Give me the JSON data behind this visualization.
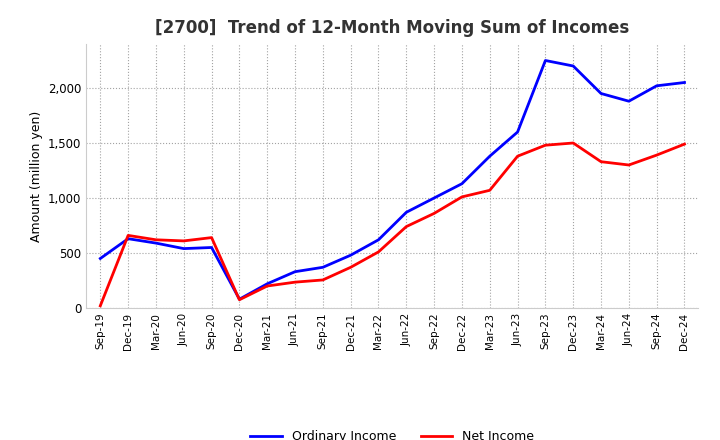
{
  "title": "[2700]  Trend of 12-Month Moving Sum of Incomes",
  "ylabel": "Amount (million yen)",
  "x_labels": [
    "Sep-19",
    "Dec-19",
    "Mar-20",
    "Jun-20",
    "Sep-20",
    "Dec-20",
    "Mar-21",
    "Jun-21",
    "Sep-21",
    "Dec-21",
    "Mar-22",
    "Jun-22",
    "Sep-22",
    "Dec-22",
    "Mar-23",
    "Jun-23",
    "Sep-23",
    "Dec-23",
    "Mar-24",
    "Jun-24",
    "Sep-24",
    "Dec-24"
  ],
  "ordinary_income": [
    450,
    630,
    590,
    540,
    550,
    80,
    220,
    330,
    370,
    480,
    620,
    870,
    1000,
    1130,
    1380,
    1600,
    2250,
    2200,
    1950,
    1880,
    2020,
    2050
  ],
  "net_income": [
    20,
    660,
    620,
    610,
    640,
    75,
    200,
    235,
    255,
    370,
    510,
    740,
    860,
    1010,
    1070,
    1380,
    1480,
    1500,
    1330,
    1300,
    1390,
    1490
  ],
  "ordinary_color": "#0000ff",
  "net_color": "#ff0000",
  "ylim": [
    0,
    2400
  ],
  "yticks": [
    0,
    500,
    1000,
    1500,
    2000
  ],
  "background_color": "#ffffff",
  "grid_color": "#999999",
  "title_color": "#333333"
}
